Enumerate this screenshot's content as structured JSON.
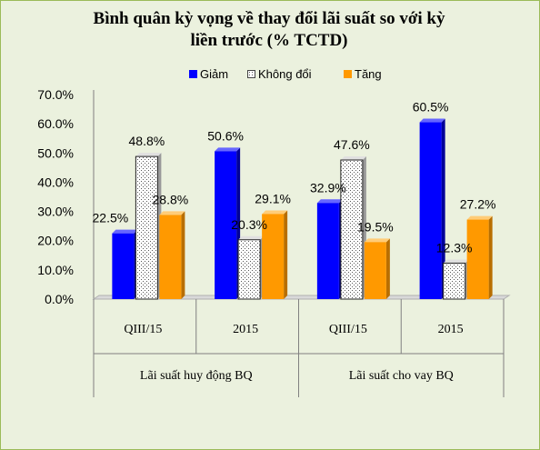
{
  "title_line1": "Bình quân kỳ vọng về thay đổi lãi suất so với kỳ",
  "title_line2": "liền trước (% TCTD)",
  "legend": [
    {
      "name": "Giảm",
      "color": "#0000ff",
      "pattern": "solid"
    },
    {
      "name": "Không đổi",
      "color": "#ffffff",
      "pattern": "dotted"
    },
    {
      "name": "Tăng",
      "color": "#ff9900",
      "pattern": "solid"
    }
  ],
  "chart_data": {
    "type": "bar",
    "categories": [
      "QIII/15",
      "2015",
      "QIII/15",
      "2015"
    ],
    "groups": [
      {
        "label": "Lãi suất huy động BQ",
        "categories": [
          "QIII/15",
          "2015"
        ]
      },
      {
        "label": "Lãi suất cho vay BQ",
        "categories": [
          "QIII/15",
          "2015"
        ]
      }
    ],
    "series": [
      {
        "name": "Giảm",
        "values": [
          22.5,
          50.6,
          32.9,
          60.5
        ],
        "labels": [
          "22.5%",
          "50.6%",
          "32.9%",
          "60.5%"
        ]
      },
      {
        "name": "Không đổi",
        "values": [
          48.8,
          20.3,
          47.6,
          12.3
        ],
        "labels": [
          "48.8%",
          "20.3%",
          "47.6%",
          "12.3%"
        ]
      },
      {
        "name": "Tăng",
        "values": [
          28.8,
          29.1,
          19.5,
          27.2
        ],
        "labels": [
          "28.8%",
          "29.1%",
          "19.5%",
          "27.2%"
        ]
      }
    ],
    "yticks": [
      "0.0%",
      "10.0%",
      "20.0%",
      "30.0%",
      "40.0%",
      "50.0%",
      "60.0%",
      "70.0%"
    ],
    "ylim": [
      0,
      70
    ],
    "grid": false,
    "legend_position": "top"
  }
}
